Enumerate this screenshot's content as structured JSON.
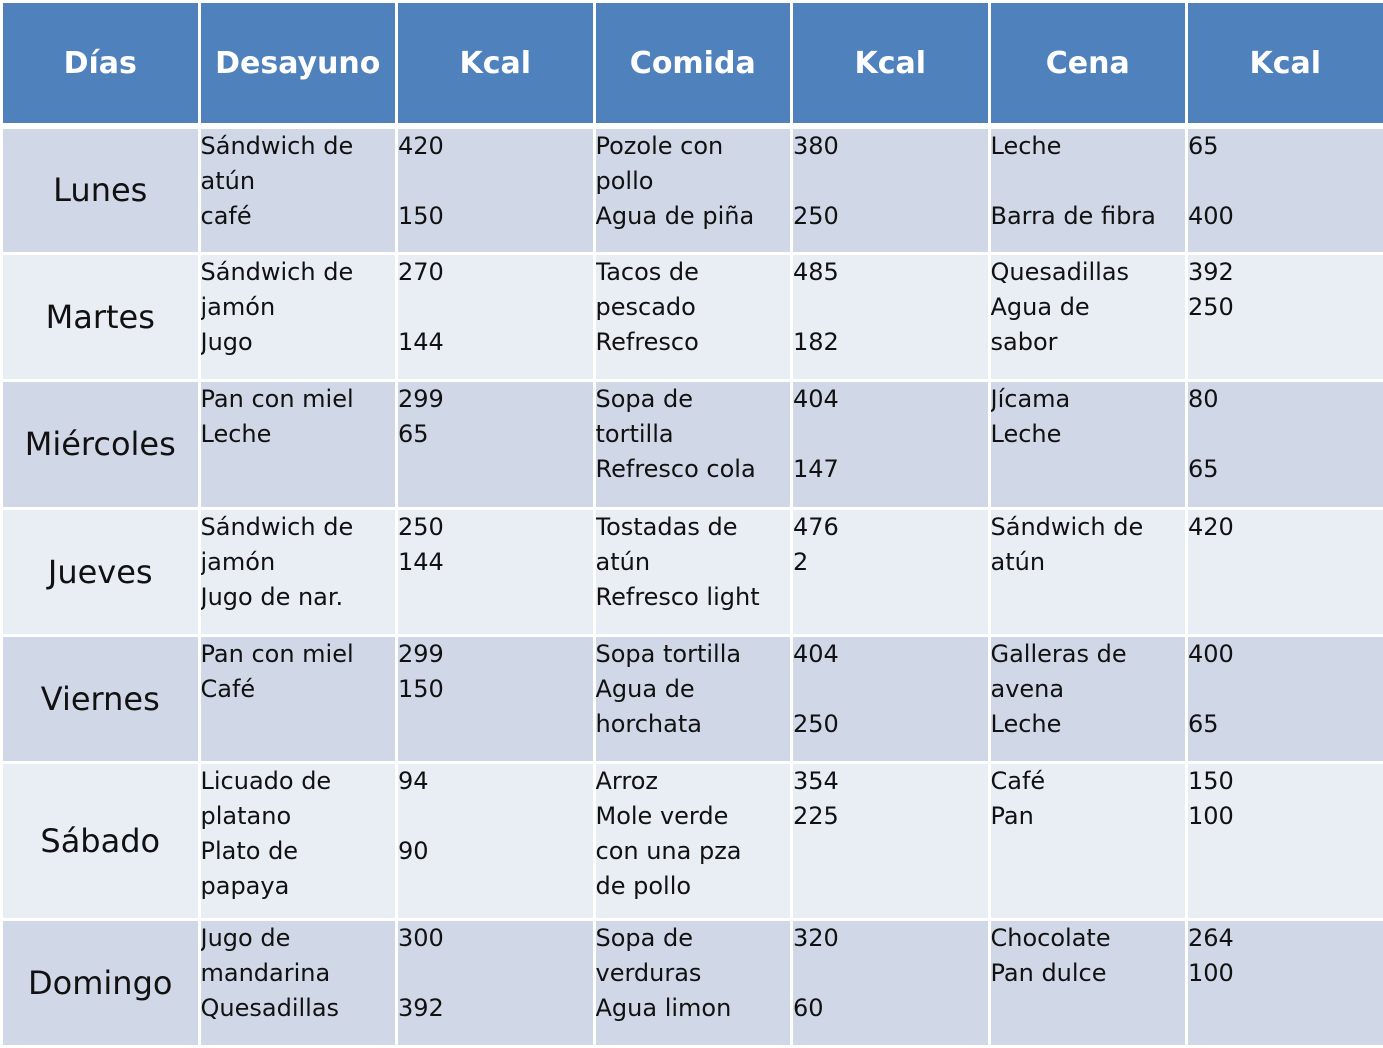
{
  "headers": [
    "Días",
    "Desayuno",
    "Kcal",
    "Comida",
    "Kcal",
    "Cena",
    "Kcal"
  ],
  "rows": [
    {
      "day": "Lunes",
      "desayuno": "Sándwich de\natún\ncafé",
      "kcal_desayuno": "420\n\n150",
      "comida": "Pozole con\npollo\nAgua de piña",
      "kcal_comida": "380\n\n250",
      "cena": "Leche\n\nBarra de fibra",
      "kcal_cena": "65\n\n400"
    },
    {
      "day": "Martes",
      "desayuno": "Sándwich de\njamón\nJugo",
      "kcal_desayuno": "270\n\n144",
      "comida": "Tacos de\npescado\nRefresco",
      "kcal_comida": "485\n\n182",
      "cena": "Quesadillas\nAgua de\nsabor",
      "kcal_cena": "392\n250"
    },
    {
      "day": "Miércoles",
      "desayuno": "Pan con miel\nLeche",
      "kcal_desayuno": "299\n65",
      "comida": "Sopa de\ntortilla\nRefresco cola",
      "kcal_comida": "404\n\n147",
      "cena": "Jícama\nLeche",
      "kcal_cena": "80\n\n65"
    },
    {
      "day": "Jueves",
      "desayuno": "Sándwich de\njamón\nJugo de nar.",
      "kcal_desayuno": "250\n144",
      "comida": "Tostadas de\natún\nRefresco light",
      "kcal_comida": "476\n2",
      "cena": "Sándwich de\natún",
      "kcal_cena": "420"
    },
    {
      "day": "Viernes",
      "desayuno": "Pan con miel\nCafé",
      "kcal_desayuno": "299\n150",
      "comida": "Sopa tortilla\nAgua de\nhorchata",
      "kcal_comida": "404\n\n250",
      "cena": "Galleras de\navena\nLeche",
      "kcal_cena": "400\n\n65"
    },
    {
      "day": "Sábado",
      "desayuno": "Licuado de\nplatano\nPlato de\npapaya",
      "kcal_desayuno": "94\n\n90",
      "comida": "Arroz\nMole verde\ncon una pza\nde pollo",
      "kcal_comida": "354\n225",
      "cena": "Café\nPan",
      "kcal_cena": "150\n100"
    },
    {
      "day": "Domingo",
      "desayuno": "Jugo de\nmandarina\nQuesadillas",
      "kcal_desayuno": "300\n\n392",
      "comida": "Sopa de\nverduras\nAgua limon",
      "kcal_comida": "320\n\n60",
      "cena": "Chocolate\nPan dulce",
      "kcal_cena": "264\n100"
    }
  ],
  "colors": {
    "header": "#4f81bd",
    "row_odd": "#d0d8e8",
    "row_even": "#e9edf4"
  }
}
